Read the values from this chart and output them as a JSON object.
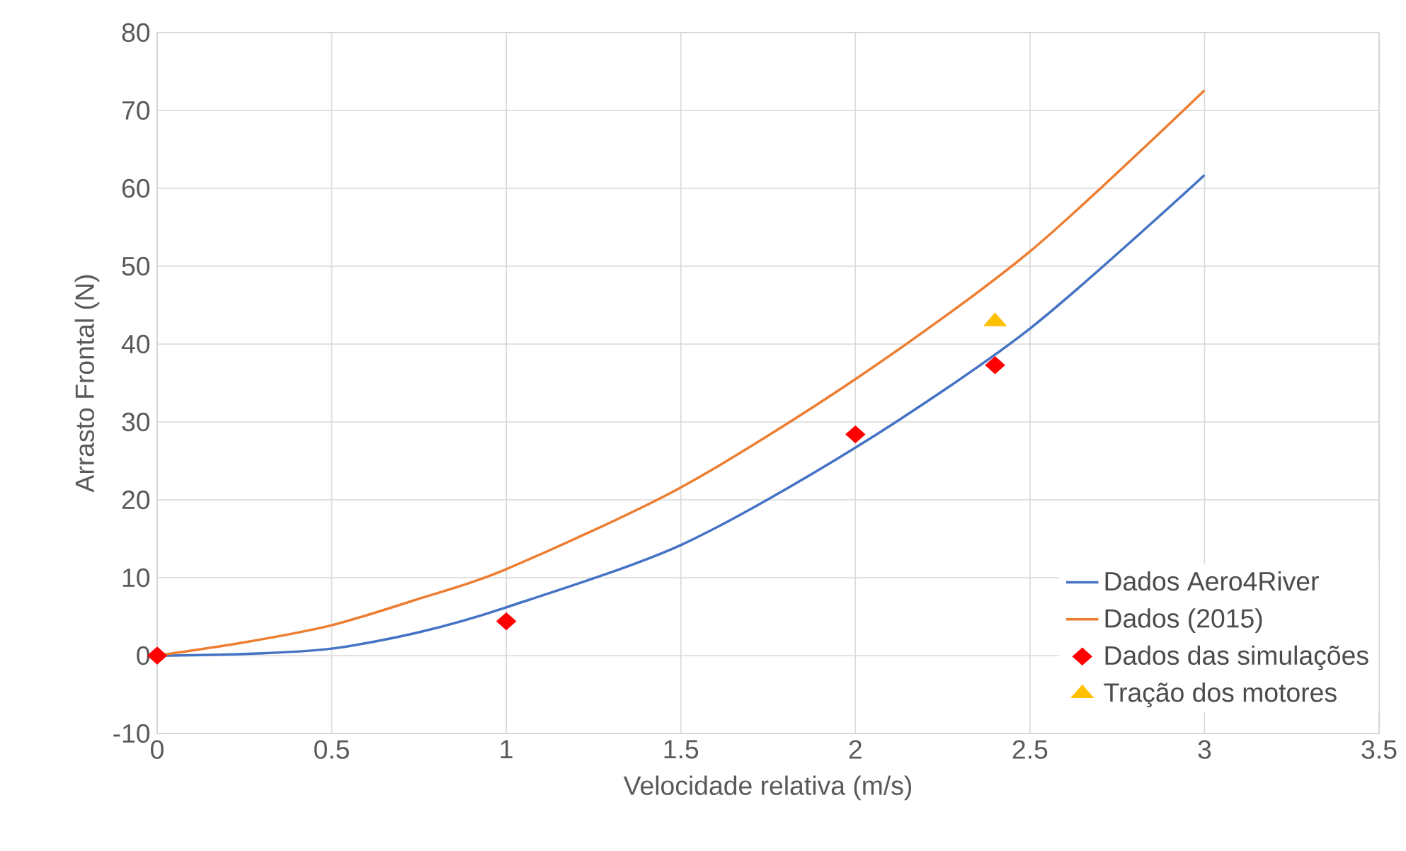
{
  "chart_data": {
    "type": "line",
    "xlabel": "Velocidade relativa (m/s)",
    "ylabel": "Arrasto Frontal (N)",
    "xlim": [
      0,
      3.5
    ],
    "ylim": [
      -10,
      80
    ],
    "xticks": [
      0,
      0.5,
      1,
      1.5,
      2,
      2.5,
      3,
      3.5
    ],
    "yticks": [
      -10,
      0,
      10,
      20,
      30,
      40,
      50,
      60,
      70,
      80
    ],
    "grid": true,
    "legend": "bottom right",
    "series": [
      {
        "name": "Dados Aero4River",
        "color": "#4472c4",
        "marker": "none",
        "x": [
          0,
          0.25,
          0.5,
          0.75,
          1,
          1.5,
          2,
          2.5,
          3
        ],
        "values": [
          0,
          0.2,
          0.9,
          3.0,
          6.2,
          14.2,
          26.7,
          42.0,
          61.7
        ]
      },
      {
        "name": "Dados (2015)",
        "color": "#ed7d31",
        "marker": "none",
        "x": [
          0,
          0.25,
          0.5,
          0.75,
          1,
          1.5,
          2,
          2.5,
          3
        ],
        "values": [
          0,
          1.7,
          3.9,
          7.3,
          11.1,
          21.6,
          35.5,
          51.9,
          72.6
        ]
      },
      {
        "name": "Dados das simulações",
        "type": "scatter",
        "color": "#ff0000",
        "marker": "diamond",
        "x": [
          0,
          1,
          2,
          2.4
        ],
        "values": [
          0,
          4.4,
          28.4,
          37.3
        ]
      },
      {
        "name": "Tração dos motores",
        "type": "scatter",
        "color": "#ffc000",
        "marker": "triangle",
        "x": [
          2.4
        ],
        "values": [
          42.9
        ]
      }
    ]
  }
}
